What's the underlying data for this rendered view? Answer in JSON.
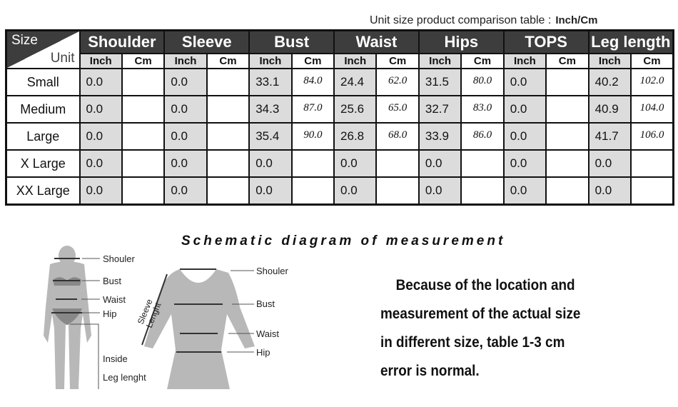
{
  "caption": {
    "text": "Unit size product comparison table :",
    "unit": "Inch/Cm"
  },
  "corner": {
    "size": "Size",
    "unit": "Unit"
  },
  "groups": [
    "Shoulder",
    "Sleeve",
    "Bust",
    "Waist",
    "Hips",
    "TOPS",
    "Leg length"
  ],
  "sub": {
    "inch": "Inch",
    "cm": "Cm"
  },
  "rows": [
    {
      "size": "Small",
      "v": [
        "0.0",
        "",
        "0.0",
        "",
        "33.1",
        "84.0",
        "24.4",
        "62.0",
        "31.5",
        "80.0",
        "0.0",
        "",
        "40.2",
        "102.0"
      ]
    },
    {
      "size": "Medium",
      "v": [
        "0.0",
        "",
        "0.0",
        "",
        "34.3",
        "87.0",
        "25.6",
        "65.0",
        "32.7",
        "83.0",
        "0.0",
        "",
        "40.9",
        "104.0"
      ]
    },
    {
      "size": "Large",
      "v": [
        "0.0",
        "",
        "0.0",
        "",
        "35.4",
        "90.0",
        "26.8",
        "68.0",
        "33.9",
        "86.0",
        "0.0",
        "",
        "41.7",
        "106.0"
      ]
    },
    {
      "size": "X Large",
      "v": [
        "0.0",
        "",
        "0.0",
        "",
        "0.0",
        "",
        "0.0",
        "",
        "0.0",
        "",
        "0.0",
        "",
        "0.0",
        ""
      ]
    },
    {
      "size": "XX Large",
      "v": [
        "0.0",
        "",
        "0.0",
        "",
        "0.0",
        "",
        "0.0",
        "",
        "0.0",
        "",
        "0.0",
        "",
        "0.0",
        ""
      ]
    }
  ],
  "diagram": {
    "title": "Schematic diagram of measurement",
    "body_labels": {
      "shoulder": "Shouler",
      "bust": "Bust",
      "waist": "Waist",
      "hip": "Hip",
      "inside": "Inside",
      "leg": "Leg lenght"
    },
    "dress_labels": {
      "shoulder": "Shouler",
      "bust": "Bust",
      "waist": "Waist",
      "hip": "Hip",
      "sleeve1": "Sleeve",
      "sleeve2": "Lenght"
    }
  },
  "note": [
    "Because of the location and",
    "measurement of the actual size",
    "in different size, table 1-3 cm",
    "error is normal."
  ],
  "colors": {
    "header": "#3d3d3d",
    "inch_cell": "#dcdcdc",
    "figure": "#b8b8b8"
  }
}
